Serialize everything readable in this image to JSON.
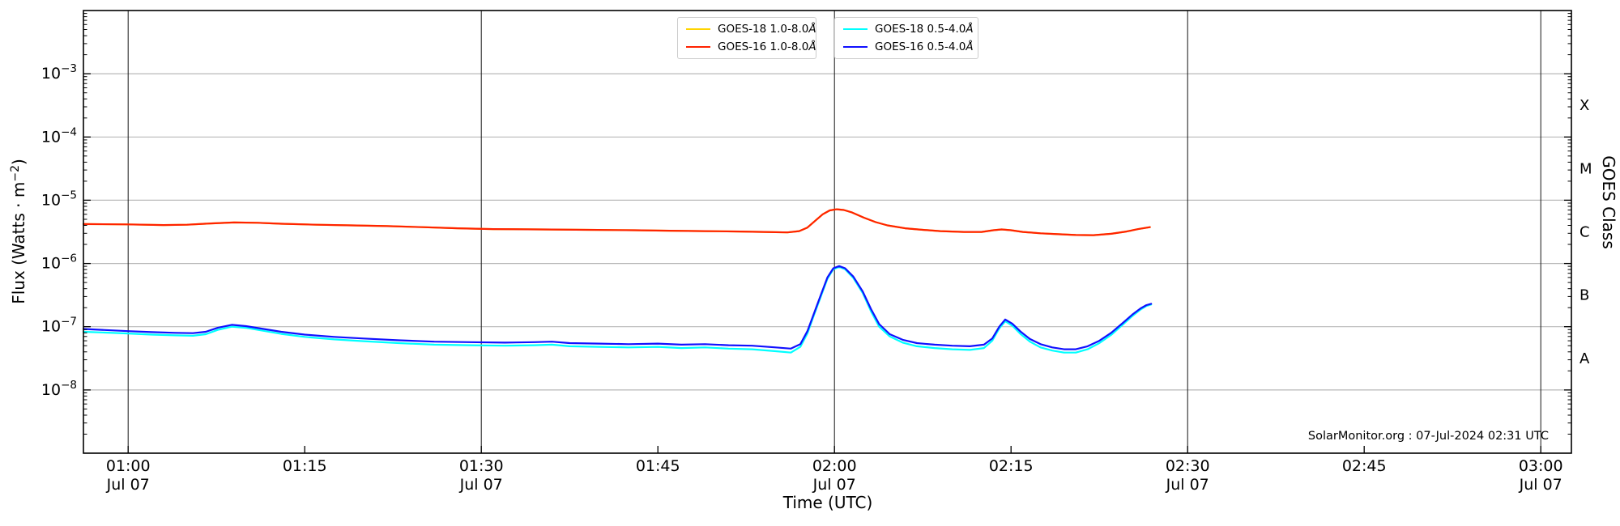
{
  "figure": {
    "watermark": "SolarMonitor.org : 07-Jul-2024 02:31 UTC"
  },
  "chart_data": {
    "type": "line",
    "title": "",
    "xlabel": "Time (UTC)",
    "ylabel_left": "Flux (Watts · m⁻²)",
    "ylabel_left_parts": {
      "pre": "Flux (Watts · m",
      "sup": "−2",
      "post": ")"
    },
    "ylabel_right": "GOES Class",
    "x_unit": "minutes after 2024-07-07 01:00 UTC",
    "x_range": [
      -3.8,
      122.6
    ],
    "y_scale": "log",
    "y_range": [
      1e-09,
      0.01
    ],
    "grid": {
      "h_decades": [
        0.001,
        0.0001,
        1e-05,
        1e-06,
        1e-07,
        1e-08
      ],
      "v_minutes": [
        0,
        30,
        60,
        90,
        120
      ]
    },
    "x_ticks": [
      {
        "t": 0,
        "label": "01:00",
        "date": "Jul 07"
      },
      {
        "t": 15,
        "label": "01:15"
      },
      {
        "t": 30,
        "label": "01:30",
        "date": "Jul 07"
      },
      {
        "t": 45,
        "label": "01:45"
      },
      {
        "t": 60,
        "label": "02:00",
        "date": "Jul 07"
      },
      {
        "t": 75,
        "label": "02:15"
      },
      {
        "t": 90,
        "label": "02:30",
        "date": "Jul 07"
      },
      {
        "t": 105,
        "label": "02:45"
      },
      {
        "t": 120,
        "label": "03:00",
        "date": "Jul 07"
      }
    ],
    "y_ticks": [
      {
        "base": "10",
        "sup": "−3",
        "exp": -3
      },
      {
        "base": "10",
        "sup": "−4",
        "exp": -4
      },
      {
        "base": "10",
        "sup": "−5",
        "exp": -5
      },
      {
        "base": "10",
        "sup": "−6",
        "exp": -6
      },
      {
        "base": "10",
        "sup": "−7",
        "exp": -7
      },
      {
        "base": "10",
        "sup": "−8",
        "exp": -8
      }
    ],
    "right_class_ticks": [
      {
        "label": "X",
        "flux": 0.000316
      },
      {
        "label": "M",
        "flux": 3.16e-05
      },
      {
        "label": "C",
        "flux": 3.16e-06
      },
      {
        "label": "B",
        "flux": 3.16e-07
      },
      {
        "label": "A",
        "flux": 3.16e-08
      }
    ],
    "draw_order": [
      "goes18_long",
      "goes16_long",
      "goes18_short",
      "goes16_short"
    ],
    "series": [
      {
        "id": "goes18_long",
        "name": "GOES-18 1.0-8.0Å",
        "legend_label": "GOES-18 1.0-8.0",
        "legend_unit": "Å",
        "color": "#ffd400",
        "note": "not visibly distinct; coincident with / hidden beneath GOES-16 1.0-8.0Å curve",
        "points": [
          [
            -3.8,
            4.2e-06
          ],
          [
            0,
            4.15e-06
          ],
          [
            3,
            4.05e-06
          ],
          [
            5,
            4.1e-06
          ],
          [
            7,
            4.3e-06
          ],
          [
            9,
            4.45e-06
          ],
          [
            11,
            4.4e-06
          ],
          [
            13,
            4.25e-06
          ],
          [
            16,
            4.1e-06
          ],
          [
            19,
            4e-06
          ],
          [
            22,
            3.9e-06
          ],
          [
            25,
            3.75e-06
          ],
          [
            28,
            3.6e-06
          ],
          [
            31,
            3.5e-06
          ],
          [
            35,
            3.45e-06
          ],
          [
            39,
            3.4e-06
          ],
          [
            43,
            3.35e-06
          ],
          [
            46,
            3.3e-06
          ],
          [
            49,
            3.25e-06
          ],
          [
            52,
            3.2e-06
          ],
          [
            54,
            3.15e-06
          ],
          [
            56,
            3.1e-06
          ],
          [
            57,
            3.25e-06
          ],
          [
            57.7,
            3.7e-06
          ],
          [
            58.4,
            4.8e-06
          ],
          [
            59,
            6e-06
          ],
          [
            59.6,
            6.9e-06
          ],
          [
            60.2,
            7.2e-06
          ],
          [
            60.8,
            7e-06
          ],
          [
            61.5,
            6.4e-06
          ],
          [
            62.5,
            5.3e-06
          ],
          [
            63.5,
            4.5e-06
          ],
          [
            64.5,
            4e-06
          ],
          [
            66,
            3.6e-06
          ],
          [
            67.5,
            3.4e-06
          ],
          [
            69,
            3.25e-06
          ],
          [
            71,
            3.15e-06
          ],
          [
            72.5,
            3.15e-06
          ],
          [
            73.5,
            3.35e-06
          ],
          [
            74.2,
            3.45e-06
          ],
          [
            75,
            3.35e-06
          ],
          [
            76,
            3.15e-06
          ],
          [
            77.5,
            3e-06
          ],
          [
            79,
            2.9e-06
          ],
          [
            80.5,
            2.82e-06
          ],
          [
            82,
            2.8e-06
          ],
          [
            83.5,
            2.95e-06
          ],
          [
            84.8,
            3.2e-06
          ],
          [
            85.8,
            3.5e-06
          ],
          [
            86.8,
            3.75e-06
          ]
        ]
      },
      {
        "id": "goes16_long",
        "name": "GOES-16 1.0-8.0Å",
        "legend_label": "GOES-16 1.0-8.0",
        "legend_unit": "Å",
        "color": "#ff2200",
        "points": [
          [
            -3.8,
            4.2e-06
          ],
          [
            0,
            4.15e-06
          ],
          [
            3,
            4.05e-06
          ],
          [
            5,
            4.1e-06
          ],
          [
            7,
            4.3e-06
          ],
          [
            9,
            4.45e-06
          ],
          [
            11,
            4.4e-06
          ],
          [
            13,
            4.25e-06
          ],
          [
            16,
            4.1e-06
          ],
          [
            19,
            4e-06
          ],
          [
            22,
            3.9e-06
          ],
          [
            25,
            3.75e-06
          ],
          [
            28,
            3.6e-06
          ],
          [
            31,
            3.5e-06
          ],
          [
            35,
            3.45e-06
          ],
          [
            39,
            3.4e-06
          ],
          [
            43,
            3.35e-06
          ],
          [
            46,
            3.3e-06
          ],
          [
            49,
            3.25e-06
          ],
          [
            52,
            3.2e-06
          ],
          [
            54,
            3.15e-06
          ],
          [
            56,
            3.1e-06
          ],
          [
            57,
            3.25e-06
          ],
          [
            57.7,
            3.7e-06
          ],
          [
            58.4,
            4.8e-06
          ],
          [
            59,
            6e-06
          ],
          [
            59.6,
            6.9e-06
          ],
          [
            60.2,
            7.2e-06
          ],
          [
            60.8,
            7e-06
          ],
          [
            61.5,
            6.4e-06
          ],
          [
            62.5,
            5.3e-06
          ],
          [
            63.5,
            4.5e-06
          ],
          [
            64.5,
            4e-06
          ],
          [
            66,
            3.6e-06
          ],
          [
            67.5,
            3.4e-06
          ],
          [
            69,
            3.25e-06
          ],
          [
            71,
            3.15e-06
          ],
          [
            72.5,
            3.15e-06
          ],
          [
            73.5,
            3.35e-06
          ],
          [
            74.2,
            3.45e-06
          ],
          [
            75,
            3.35e-06
          ],
          [
            76,
            3.15e-06
          ],
          [
            77.5,
            3e-06
          ],
          [
            79,
            2.9e-06
          ],
          [
            80.5,
            2.82e-06
          ],
          [
            82,
            2.8e-06
          ],
          [
            83.5,
            2.95e-06
          ],
          [
            84.8,
            3.2e-06
          ],
          [
            85.8,
            3.5e-06
          ],
          [
            86.8,
            3.75e-06
          ]
        ]
      },
      {
        "id": "goes18_short",
        "name": "GOES-18 0.5-4.0Å",
        "legend_label": "GOES-18 0.5-4.0",
        "legend_unit": "Å",
        "color": "#00ffff",
        "points": [
          [
            -3.8,
            8.3e-08
          ],
          [
            0,
            7.8e-08
          ],
          [
            2,
            7.5e-08
          ],
          [
            4,
            7.3e-08
          ],
          [
            5.5,
            7.2e-08
          ],
          [
            6.6,
            7.6e-08
          ],
          [
            7.6,
            8.9e-08
          ],
          [
            8.8,
            1e-07
          ],
          [
            10,
            9.6e-08
          ],
          [
            11.5,
            8.6e-08
          ],
          [
            13,
            7.7e-08
          ],
          [
            15,
            6.9e-08
          ],
          [
            17.5,
            6.3e-08
          ],
          [
            20,
            5.9e-08
          ],
          [
            23,
            5.5e-08
          ],
          [
            26,
            5.2e-08
          ],
          [
            29,
            5.1e-08
          ],
          [
            32,
            5e-08
          ],
          [
            34.5,
            5.1e-08
          ],
          [
            36,
            5.2e-08
          ],
          [
            37.5,
            4.9e-08
          ],
          [
            40,
            4.8e-08
          ],
          [
            42.5,
            4.7e-08
          ],
          [
            45,
            4.8e-08
          ],
          [
            47,
            4.6e-08
          ],
          [
            49,
            4.7e-08
          ],
          [
            51,
            4.5e-08
          ],
          [
            53,
            4.4e-08
          ],
          [
            55,
            4.1e-08
          ],
          [
            56.3,
            3.9e-08
          ],
          [
            57.1,
            4.8e-08
          ],
          [
            57.7,
            7.8e-08
          ],
          [
            58.3,
            1.6e-07
          ],
          [
            58.9,
            3.2e-07
          ],
          [
            59.4,
            5.7e-07
          ],
          [
            59.9,
            8.1e-07
          ],
          [
            60.4,
            8.8e-07
          ],
          [
            60.9,
            8.1e-07
          ],
          [
            61.6,
            5.9e-07
          ],
          [
            62.4,
            3.4e-07
          ],
          [
            63.1,
            1.75e-07
          ],
          [
            63.8,
            1e-07
          ],
          [
            64.7,
            7e-08
          ],
          [
            65.8,
            5.6e-08
          ],
          [
            67,
            4.9e-08
          ],
          [
            68.5,
            4.6e-08
          ],
          [
            70,
            4.4e-08
          ],
          [
            71.5,
            4.3e-08
          ],
          [
            72.7,
            4.6e-08
          ],
          [
            73.4,
            6e-08
          ],
          [
            74,
            9.4e-08
          ],
          [
            74.5,
            1.22e-07
          ],
          [
            75.1,
            1.04e-07
          ],
          [
            75.8,
            7.7e-08
          ],
          [
            76.6,
            5.8e-08
          ],
          [
            77.5,
            4.7e-08
          ],
          [
            78.5,
            4.2e-08
          ],
          [
            79.5,
            3.9e-08
          ],
          [
            80.5,
            3.9e-08
          ],
          [
            81.5,
            4.4e-08
          ],
          [
            82.5,
            5.5e-08
          ],
          [
            83.5,
            7.4e-08
          ],
          [
            84.5,
            1.08e-07
          ],
          [
            85.3,
            1.47e-07
          ],
          [
            86,
            1.87e-07
          ],
          [
            86.5,
            2.13e-07
          ],
          [
            86.9,
            2.24e-07
          ]
        ]
      },
      {
        "id": "goes16_short",
        "name": "GOES-16 0.5-4.0Å",
        "legend_label": "GOES-16 0.5-4.0",
        "legend_unit": "Å",
        "color": "#1010ff",
        "points": [
          [
            -3.8,
            9.2e-08
          ],
          [
            0,
            8.5e-08
          ],
          [
            2,
            8.2e-08
          ],
          [
            4,
            8e-08
          ],
          [
            5.5,
            7.9e-08
          ],
          [
            6.6,
            8.3e-08
          ],
          [
            7.6,
            9.6e-08
          ],
          [
            8.8,
            1.07e-07
          ],
          [
            10,
            1.02e-07
          ],
          [
            11.5,
            9.2e-08
          ],
          [
            13,
            8.3e-08
          ],
          [
            15,
            7.5e-08
          ],
          [
            17.5,
            6.9e-08
          ],
          [
            20,
            6.5e-08
          ],
          [
            23,
            6.1e-08
          ],
          [
            26,
            5.8e-08
          ],
          [
            29,
            5.7e-08
          ],
          [
            32,
            5.6e-08
          ],
          [
            34.5,
            5.7e-08
          ],
          [
            36,
            5.8e-08
          ],
          [
            37.5,
            5.5e-08
          ],
          [
            40,
            5.4e-08
          ],
          [
            42.5,
            5.3e-08
          ],
          [
            45,
            5.4e-08
          ],
          [
            47,
            5.2e-08
          ],
          [
            49,
            5.3e-08
          ],
          [
            51,
            5.1e-08
          ],
          [
            53,
            5e-08
          ],
          [
            55,
            4.7e-08
          ],
          [
            56.3,
            4.5e-08
          ],
          [
            57.1,
            5.3e-08
          ],
          [
            57.7,
            8.5e-08
          ],
          [
            58.3,
            1.7e-07
          ],
          [
            58.9,
            3.4e-07
          ],
          [
            59.4,
            6e-07
          ],
          [
            59.9,
            8.4e-07
          ],
          [
            60.4,
            9.1e-07
          ],
          [
            60.9,
            8.4e-07
          ],
          [
            61.6,
            6.2e-07
          ],
          [
            62.4,
            3.6e-07
          ],
          [
            63.1,
            1.9e-07
          ],
          [
            63.8,
            1.1e-07
          ],
          [
            64.7,
            7.6e-08
          ],
          [
            65.8,
            6.2e-08
          ],
          [
            67,
            5.5e-08
          ],
          [
            68.5,
            5.2e-08
          ],
          [
            70,
            5e-08
          ],
          [
            71.5,
            4.9e-08
          ],
          [
            72.7,
            5.2e-08
          ],
          [
            73.4,
            6.5e-08
          ],
          [
            74,
            1e-07
          ],
          [
            74.5,
            1.3e-07
          ],
          [
            75.1,
            1.12e-07
          ],
          [
            75.8,
            8.4e-08
          ],
          [
            76.6,
            6.4e-08
          ],
          [
            77.5,
            5.3e-08
          ],
          [
            78.5,
            4.7e-08
          ],
          [
            79.5,
            4.4e-08
          ],
          [
            80.5,
            4.4e-08
          ],
          [
            81.5,
            4.9e-08
          ],
          [
            82.5,
            6e-08
          ],
          [
            83.5,
            8e-08
          ],
          [
            84.5,
            1.15e-07
          ],
          [
            85.3,
            1.55e-07
          ],
          [
            86,
            1.95e-07
          ],
          [
            86.5,
            2.2e-07
          ],
          [
            86.9,
            2.3e-07
          ]
        ]
      }
    ],
    "legend": {
      "boxes": [
        {
          "series_ids": [
            "goes18_long",
            "goes16_long"
          ]
        },
        {
          "series_ids": [
            "goes18_short",
            "goes16_short"
          ]
        }
      ],
      "position": "top center, two boxes side by side"
    }
  }
}
